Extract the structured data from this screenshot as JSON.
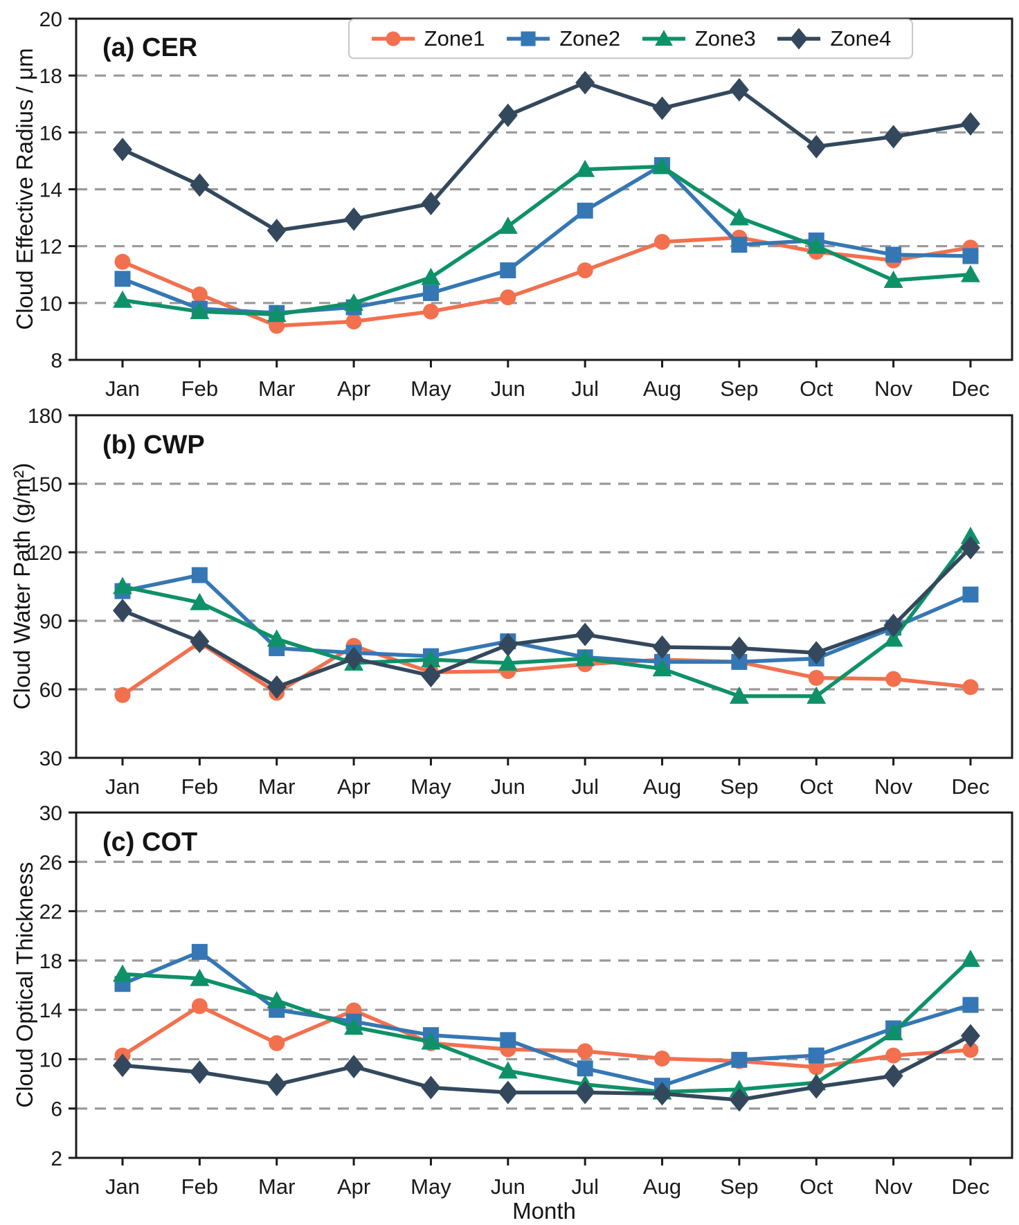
{
  "figure": {
    "background": "#ffffff",
    "grid_color": "#999999",
    "axis_color": "#1a1a1a"
  },
  "xlabel": "Month",
  "legend": {
    "position": "top-right of panel (a)",
    "entries": [
      {
        "label": "Zone1",
        "color": "#F2704E",
        "marker": "circle"
      },
      {
        "label": "Zone2",
        "color": "#3577B4",
        "marker": "square"
      },
      {
        "label": "Zone3",
        "color": "#0E9168",
        "marker": "triangle"
      },
      {
        "label": "Zone4",
        "color": "#33485C",
        "marker": "diamond"
      }
    ]
  },
  "chart_data": [
    {
      "id": "cer",
      "type": "line",
      "title": "(a) CER",
      "ylabel": "Cloud Effective Radius / μm",
      "ylim": [
        8,
        20
      ],
      "yticks": [
        8,
        10,
        12,
        14,
        16,
        18,
        20
      ],
      "grid": "dashed horizontal",
      "categories": [
        "Jan",
        "Feb",
        "Mar",
        "Apr",
        "May",
        "Jun",
        "Jul",
        "Aug",
        "Sep",
        "Oct",
        "Nov",
        "Dec"
      ],
      "series": [
        {
          "name": "Zone1",
          "color": "#F2704E",
          "marker": "circle",
          "values": [
            11.45,
            10.3,
            9.2,
            9.35,
            9.7,
            10.2,
            11.15,
            12.15,
            12.3,
            11.8,
            11.5,
            11.95
          ]
        },
        {
          "name": "Zone2",
          "color": "#3577B4",
          "marker": "square",
          "values": [
            10.85,
            9.8,
            9.65,
            9.85,
            10.35,
            11.15,
            13.25,
            14.85,
            12.05,
            12.2,
            11.7,
            11.65
          ]
        },
        {
          "name": "Zone3",
          "color": "#0E9168",
          "marker": "triangle",
          "values": [
            10.1,
            9.7,
            9.6,
            10.0,
            10.9,
            12.7,
            14.7,
            14.8,
            13.0,
            12.0,
            10.8,
            11.0
          ]
        },
        {
          "name": "Zone4",
          "color": "#33485C",
          "marker": "diamond",
          "values": [
            15.4,
            14.15,
            12.55,
            12.95,
            13.5,
            16.6,
            17.75,
            16.85,
            17.5,
            15.5,
            15.85,
            16.3
          ]
        }
      ]
    },
    {
      "id": "cwp",
      "type": "line",
      "title": "(b) CWP",
      "ylabel": "Cloud Water Path (g/m²)",
      "ylim": [
        30,
        180
      ],
      "yticks": [
        30,
        60,
        90,
        120,
        150,
        180
      ],
      "grid": "dashed horizontal",
      "categories": [
        "Jan",
        "Feb",
        "Mar",
        "Apr",
        "May",
        "Jun",
        "Jul",
        "Aug",
        "Sep",
        "Oct",
        "Nov",
        "Dec"
      ],
      "series": [
        {
          "name": "Zone1",
          "color": "#F2704E",
          "marker": "circle",
          "values": [
            57.5,
            80.5,
            58.5,
            79,
            67.5,
            68,
            71,
            73,
            72,
            65,
            64.5,
            61
          ]
        },
        {
          "name": "Zone2",
          "color": "#3577B4",
          "marker": "square",
          "values": [
            103,
            110,
            78,
            76,
            74.5,
            81,
            74,
            72,
            72,
            73.5,
            87,
            101.5
          ]
        },
        {
          "name": "Zone3",
          "color": "#0E9168",
          "marker": "triangle",
          "values": [
            105,
            98,
            82,
            71.5,
            73,
            71.5,
            73.5,
            69,
            57,
            57,
            82,
            127
          ]
        },
        {
          "name": "Zone4",
          "color": "#33485C",
          "marker": "diamond",
          "values": [
            94.5,
            81,
            61,
            73.5,
            66,
            79.5,
            84,
            78.5,
            78,
            76,
            88,
            122
          ]
        }
      ]
    },
    {
      "id": "cot",
      "type": "line",
      "title": "(c) COT",
      "ylabel": "Cloud Optical Thickness",
      "ylim": [
        2,
        30
      ],
      "yticks": [
        2,
        6,
        10,
        14,
        18,
        22,
        26,
        30
      ],
      "grid": "dashed horizontal",
      "categories": [
        "Jan",
        "Feb",
        "Mar",
        "Apr",
        "May",
        "Jun",
        "Jul",
        "Aug",
        "Sep",
        "Oct",
        "Nov",
        "Dec"
      ],
      "series": [
        {
          "name": "Zone1",
          "color": "#F2704E",
          "marker": "circle",
          "values": [
            10.3,
            14.3,
            11.3,
            13.95,
            11.3,
            10.8,
            10.65,
            10.05,
            9.85,
            9.35,
            10.3,
            10.75
          ]
        },
        {
          "name": "Zone2",
          "color": "#3577B4",
          "marker": "square",
          "values": [
            16.1,
            18.7,
            14.0,
            13.05,
            11.95,
            11.55,
            9.25,
            7.85,
            9.95,
            10.3,
            12.5,
            14.4
          ]
        },
        {
          "name": "Zone3",
          "color": "#0E9168",
          "marker": "triangle",
          "values": [
            16.9,
            16.55,
            14.75,
            12.6,
            11.4,
            9.05,
            7.95,
            7.35,
            7.55,
            8.1,
            12.15,
            18.1
          ]
        },
        {
          "name": "Zone4",
          "color": "#33485C",
          "marker": "diamond",
          "values": [
            9.5,
            8.95,
            7.95,
            9.4,
            7.7,
            7.3,
            7.3,
            7.2,
            6.7,
            7.75,
            8.65,
            11.9
          ]
        }
      ]
    }
  ]
}
